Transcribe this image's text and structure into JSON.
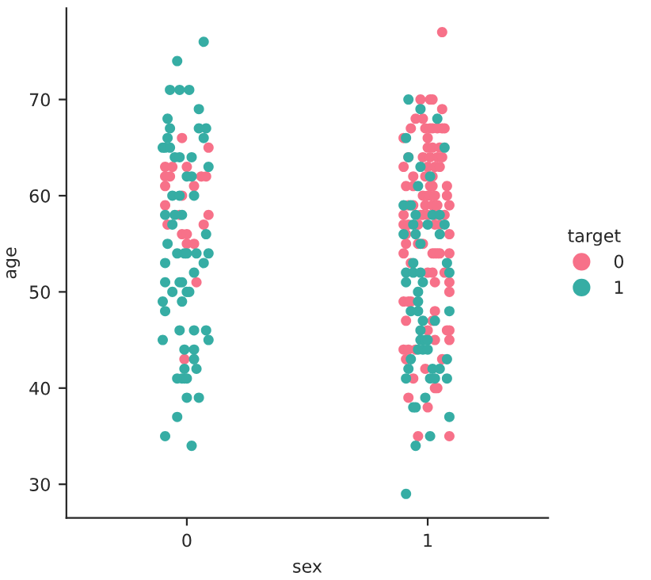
{
  "chart_data": {
    "type": "scatter",
    "xlabel": "sex",
    "ylabel": "age",
    "legend_title": "target",
    "legend": "right",
    "marker": "circle",
    "grid": false,
    "xlim": [
      -0.5,
      1.5
    ],
    "xticks": [
      0,
      1
    ],
    "ylim": [
      26.5,
      79.5
    ],
    "yticks": [
      30,
      40,
      50,
      60,
      70
    ],
    "series": [
      {
        "name": "0",
        "color": "#f77189",
        "x": [
          -0.02,
          -0.09,
          -0.06,
          0,
          -0.09,
          -0.07,
          0.06,
          0.08,
          -0.09,
          0.03,
          -0.02,
          -0.09,
          -0.03,
          0.09,
          -0.08,
          0.07,
          -0.02,
          0,
          0,
          0.03,
          0.04,
          -0.01,
          0.09,
          1.06,
          0.97,
          1.01,
          1.02,
          1.06,
          0.95,
          0.98,
          0.93,
          0.99,
          1.01,
          1.02,
          1.04,
          1.06,
          1.07,
          0.9,
          1.0,
          1.0,
          1.02,
          1.05,
          0.92,
          0.98,
          1.01,
          1.04,
          1.06,
          0.9,
          1.0,
          1.03,
          1.05,
          0.94,
          0.99,
          1.02,
          0.91,
          0.94,
          1.01,
          1.02,
          1.08,
          0.98,
          1.0,
          1.01,
          1.03,
          1.08,
          0.92,
          0.94,
          0.99,
          1.02,
          1.04,
          1.09,
          0.9,
          0.97,
          0.98,
          1.0,
          1.03,
          1.07,
          0.9,
          0.92,
          0.96,
          1.03,
          1.05,
          0.91,
          1.09,
          0.91,
          0.96,
          0.98,
          0.9,
          1.02,
          1.03,
          1.04,
          1.05,
          1.09,
          0.93,
          1.0,
          1.02,
          1.07,
          1.03,
          1.09,
          1.09,
          0.9,
          0.92,
          0.93,
          1.03,
          0.91,
          1.02,
          1.0,
          1.08,
          1.09,
          1.03,
          1.09,
          0.9,
          0.92,
          0.95,
          0.91,
          1.06,
          0.99,
          0.94,
          1.03,
          1.04,
          0.92,
          1.0,
          0.96,
          1.09
        ],
        "values": [
          66,
          63,
          63,
          63,
          62,
          62,
          62,
          62,
          61,
          61,
          60,
          59,
          58,
          58,
          57,
          57,
          56,
          56,
          55,
          55,
          51,
          43,
          65,
          77,
          70,
          70,
          70,
          69,
          68,
          68,
          67,
          67,
          67,
          67,
          67,
          67,
          67,
          66,
          66,
          65,
          65,
          65,
          64,
          64,
          64,
          64,
          64,
          63,
          63,
          63,
          63,
          62,
          62,
          62,
          61,
          61,
          61,
          61,
          61,
          60,
          60,
          60,
          60,
          60,
          59,
          59,
          59,
          59,
          59,
          59,
          58,
          58,
          58,
          58,
          58,
          58,
          57,
          57,
          57,
          57,
          57,
          56,
          56,
          55,
          55,
          55,
          54,
          54,
          54,
          54,
          54,
          54,
          53,
          52,
          52,
          52,
          51,
          51,
          50,
          49,
          49,
          49,
          48,
          47,
          47,
          46,
          46,
          46,
          45,
          45,
          44,
          44,
          44,
          43,
          43,
          42,
          41,
          40,
          40,
          39,
          38,
          35,
          35
        ]
      },
      {
        "name": "1",
        "color": "#36ada4",
        "x": [
          0.07,
          -0.04,
          -0.07,
          -0.03,
          0.01,
          0.05,
          -0.08,
          -0.07,
          0.05,
          0.08,
          -0.08,
          0.07,
          -0.1,
          -0.09,
          -0.07,
          -0.05,
          -0.03,
          0.02,
          0.09,
          0,
          0.02,
          -0.06,
          -0.03,
          0.03,
          -0.09,
          -0.05,
          -0.02,
          -0.06,
          0.08,
          -0.08,
          -0.04,
          -0.01,
          0,
          0.04,
          0.09,
          -0.09,
          0.07,
          0.03,
          -0.09,
          -0.03,
          -0.02,
          -0.06,
          0,
          0.01,
          -0.1,
          -0.02,
          -0.09,
          -0.03,
          0.03,
          0.08,
          -0.1,
          0.09,
          -0.01,
          0.03,
          0.03,
          -0.01,
          0.04,
          -0.04,
          -0.02,
          -0.01,
          0,
          0,
          0.05,
          -0.04,
          -0.09,
          0.02,
          0.92,
          0.97,
          1.04,
          0.91,
          1.07,
          0.92,
          0.97,
          1.01,
          0.96,
          0.9,
          0.93,
          0.95,
          1.02,
          1.05,
          0.94,
          1.0,
          1.07,
          0.9,
          0.95,
          1.05,
          0.97,
          0.94,
          1.08,
          0.91,
          0.94,
          0.97,
          1.09,
          0.91,
          0.98,
          0.96,
          0.96,
          0.93,
          0.96,
          1.09,
          0.98,
          1.03,
          0.97,
          0.97,
          0.99,
          1.0,
          0.96,
          0.98,
          1.0,
          0.93,
          1.08,
          0.92,
          1.02,
          1.05,
          0.91,
          1.01,
          1.03,
          1.08,
          0.99,
          0.94,
          0.95,
          1.09,
          1.01,
          0.95,
          0.91
        ],
        "values": [
          76,
          74,
          71,
          71,
          71,
          69,
          68,
          67,
          67,
          67,
          66,
          66,
          65,
          65,
          65,
          64,
          64,
          64,
          63,
          62,
          62,
          60,
          60,
          60,
          58,
          58,
          58,
          57,
          56,
          55,
          54,
          54,
          54,
          54,
          54,
          53,
          53,
          52,
          51,
          51,
          51,
          50,
          50,
          50,
          49,
          49,
          48,
          46,
          46,
          46,
          45,
          45,
          44,
          44,
          43,
          42,
          42,
          41,
          41,
          41,
          41,
          39,
          39,
          37,
          35,
          34,
          70,
          69,
          68,
          66,
          65,
          64,
          63,
          62,
          61,
          59,
          59,
          58,
          58,
          58,
          57,
          57,
          57,
          56,
          56,
          56,
          55,
          53,
          53,
          52,
          52,
          52,
          52,
          51,
          51,
          50,
          49,
          48,
          48,
          48,
          47,
          47,
          46,
          45,
          45,
          45,
          44,
          44,
          44,
          43,
          43,
          42,
          42,
          42,
          41,
          41,
          41,
          41,
          39,
          38,
          38,
          37,
          35,
          34,
          29
        ]
      }
    ]
  }
}
